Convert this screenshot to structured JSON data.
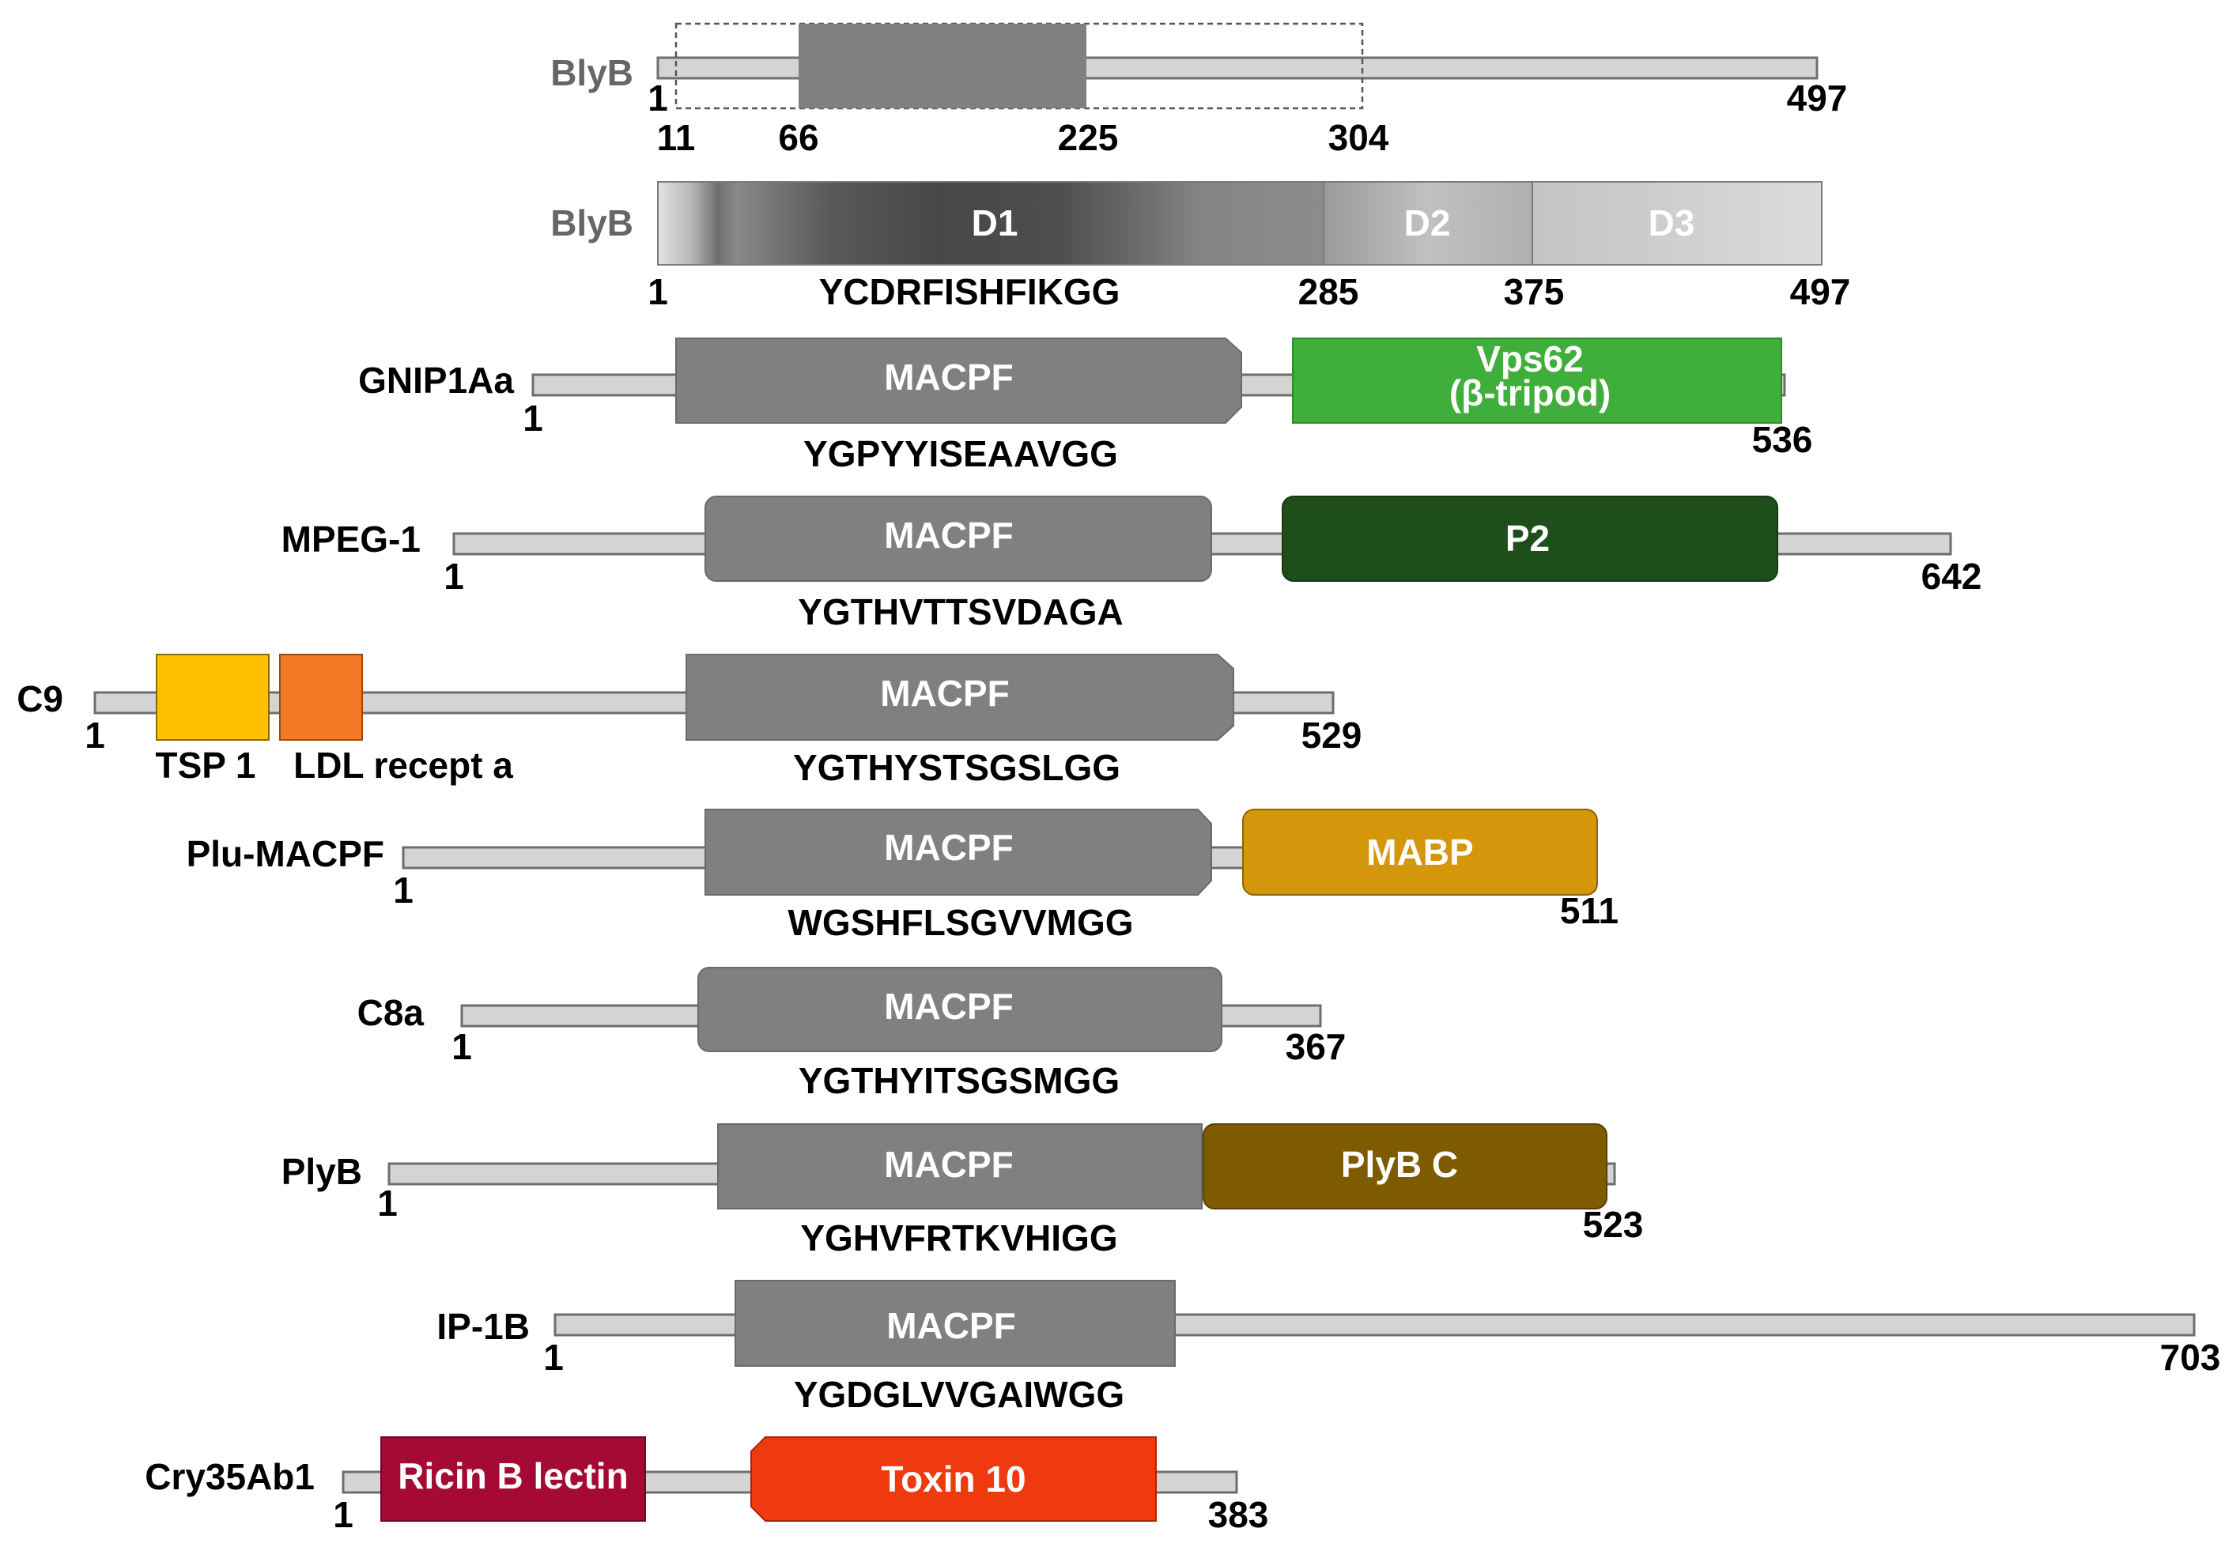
{
  "figure": {
    "rows": [
      {
        "id": "blyb-top",
        "name": "BlyB",
        "start": "1",
        "end": "497",
        "markers": [
          "11",
          "66",
          "225",
          "304"
        ]
      },
      {
        "id": "blyb-domains",
        "name": "BlyB",
        "start": "1",
        "end": "497",
        "domains": [
          "D1",
          "D2",
          "D3"
        ],
        "sequence": "YCDRFISHFIKGG",
        "boundaries": [
          "285",
          "375"
        ]
      },
      {
        "id": "gnip1aa",
        "name": "GNIP1Aa",
        "start": "1",
        "end": "536",
        "domains": [
          "MACPF",
          "Vps62",
          "(β-tripod)"
        ],
        "sequence": "YGPYYISEAAVGG"
      },
      {
        "id": "mpeg1",
        "name": "MPEG-1",
        "start": "1",
        "end": "642",
        "domains": [
          "MACPF",
          "P2"
        ],
        "sequence": "YGTHVTTSVDAGA"
      },
      {
        "id": "c9",
        "name": "C9",
        "start": "1",
        "end": "529",
        "domains": [
          "MACPF"
        ],
        "sequence": "YGTHYSTSGSLGG",
        "sublabels": [
          "TSP 1",
          "LDL recept a"
        ]
      },
      {
        "id": "plu-macpf",
        "name": "Plu-MACPF",
        "start": "1",
        "end": "511",
        "domains": [
          "MACPF",
          "MABP"
        ],
        "sequence": "WGSHFLSGVVMGG"
      },
      {
        "id": "c8a",
        "name": "C8a",
        "start": "1",
        "end": "367",
        "domains": [
          "MACPF"
        ],
        "sequence": "YGTHYITSGSMGG"
      },
      {
        "id": "plyb",
        "name": "PlyB",
        "start": "1",
        "end": "523",
        "domains": [
          "MACPF",
          "PlyB C"
        ],
        "sequence": "YGHVFRTKVHIGG"
      },
      {
        "id": "ip1b",
        "name": "IP-1B",
        "start": "1",
        "end": "703",
        "domains": [
          "MACPF"
        ],
        "sequence": "YGDGLVVGAIWGG"
      },
      {
        "id": "cry35ab1",
        "name": "Cry35Ab1",
        "start": "1",
        "end": "383",
        "domains": [
          "Ricin B lectin",
          "Toxin 10"
        ]
      }
    ],
    "colors": {
      "backbone": "#d4d4d4",
      "backbone_stroke": "#6e6e6e",
      "macpf": "#808080",
      "vps62": "#3fae3a",
      "p2": "#1e4e19",
      "tsp1": "#ffc000",
      "ldl": "#f47a28",
      "mabp": "#d4960a",
      "plybc": "#7f5b00",
      "ricin": "#a50a35",
      "toxin10": "#ef3a10"
    }
  }
}
